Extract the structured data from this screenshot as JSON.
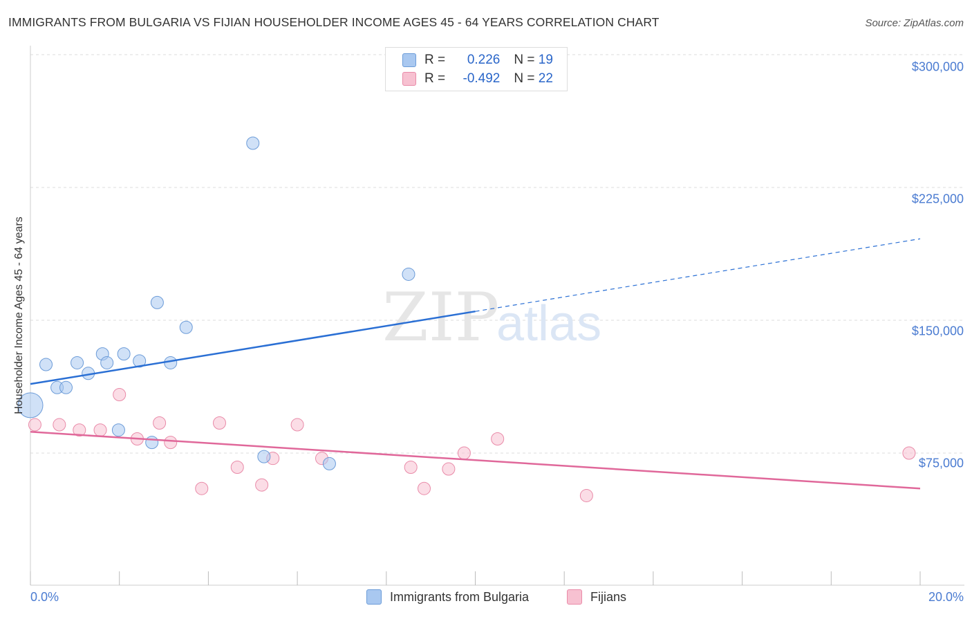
{
  "header": {
    "title": "IMMIGRANTS FROM BULGARIA VS FIJIAN HOUSEHOLDER INCOME AGES 45 - 64 YEARS CORRELATION CHART",
    "source": "Source: ZipAtlas.com"
  },
  "watermark": {
    "zip": "ZIP",
    "atlas": "atlas"
  },
  "legend": {
    "rows": [
      {
        "r_label": "R = ",
        "r_value": "0.226",
        "n_label": "N = ",
        "n_value": "19",
        "color": "#a9c8f0",
        "border": "#6b9bd8"
      },
      {
        "r_label": "R = ",
        "r_value": "-0.492",
        "n_label": "N = ",
        "n_value": "22",
        "color": "#f7c1d1",
        "border": "#e98aa8"
      }
    ]
  },
  "colors": {
    "blue_fill": "#a9c8f0",
    "blue_stroke": "#6b9bd8",
    "blue_line": "#2a6fd4",
    "pink_fill": "#f7c1d1",
    "pink_stroke": "#e98aa8",
    "pink_line": "#e0689a",
    "tick_text": "#4a7bd1",
    "grid": "#dddddd"
  },
  "chart_data": {
    "type": "scatter",
    "title": "IMMIGRANTS FROM BULGARIA VS FIJIAN HOUSEHOLDER INCOME AGES 45 - 64 YEARS CORRELATION CHART",
    "xlabel": "",
    "ylabel": "Householder Income Ages 45 - 64 years",
    "xlim": [
      0,
      20
    ],
    "ylim": [
      0,
      310000
    ],
    "x_tick_labels": [
      "0.0%",
      "20.0%"
    ],
    "y_ticks": [
      75000,
      150000,
      225000,
      300000
    ],
    "y_tick_labels": [
      "$75,000",
      "$150,000",
      "$225,000",
      "$300,000"
    ],
    "grid": true,
    "series": [
      {
        "name": "Immigrants from Bulgaria",
        "color": "#a9c8f0",
        "points": [
          {
            "x": 0.0,
            "y": 102000,
            "big": true
          },
          {
            "x": 0.35,
            "y": 125000
          },
          {
            "x": 0.6,
            "y": 112000
          },
          {
            "x": 0.8,
            "y": 112000
          },
          {
            "x": 1.05,
            "y": 126000
          },
          {
            "x": 1.3,
            "y": 120000
          },
          {
            "x": 1.62,
            "y": 131000
          },
          {
            "x": 1.72,
            "y": 126000
          },
          {
            "x": 2.1,
            "y": 131000
          },
          {
            "x": 2.45,
            "y": 127000
          },
          {
            "x": 1.98,
            "y": 88000
          },
          {
            "x": 2.73,
            "y": 81000
          },
          {
            "x": 2.85,
            "y": 160000
          },
          {
            "x": 3.15,
            "y": 126000
          },
          {
            "x": 3.5,
            "y": 146000
          },
          {
            "x": 5.0,
            "y": 250000
          },
          {
            "x": 5.25,
            "y": 73000
          },
          {
            "x": 6.72,
            "y": 69000
          },
          {
            "x": 8.5,
            "y": 176000
          }
        ],
        "trend": {
          "x0": 0.0,
          "y0": 114000,
          "x1": 10.0,
          "y1": 155000,
          "dash_to_x": 20.0,
          "dash_to_y": 196000
        }
      },
      {
        "name": "Fijians",
        "color": "#f7c1d1",
        "points": [
          {
            "x": 0.1,
            "y": 91000
          },
          {
            "x": 0.65,
            "y": 91000
          },
          {
            "x": 1.1,
            "y": 88000
          },
          {
            "x": 1.57,
            "y": 88000
          },
          {
            "x": 2.0,
            "y": 108000
          },
          {
            "x": 2.4,
            "y": 83000
          },
          {
            "x": 2.9,
            "y": 92000
          },
          {
            "x": 3.15,
            "y": 81000
          },
          {
            "x": 3.85,
            "y": 55000
          },
          {
            "x": 4.25,
            "y": 92000
          },
          {
            "x": 4.65,
            "y": 67000
          },
          {
            "x": 5.2,
            "y": 57000
          },
          {
            "x": 5.45,
            "y": 72000
          },
          {
            "x": 6.0,
            "y": 91000
          },
          {
            "x": 6.55,
            "y": 72000
          },
          {
            "x": 8.55,
            "y": 67000
          },
          {
            "x": 8.85,
            "y": 55000
          },
          {
            "x": 9.4,
            "y": 66000
          },
          {
            "x": 9.75,
            "y": 75000
          },
          {
            "x": 10.5,
            "y": 83000
          },
          {
            "x": 12.5,
            "y": 51000
          },
          {
            "x": 19.75,
            "y": 75000
          }
        ],
        "trend": {
          "x0": 0.0,
          "y0": 87000,
          "x1": 20.0,
          "y1": 55000
        }
      }
    ],
    "legend_position": "bottom"
  },
  "bottom_legend": [
    {
      "label": "Immigrants from Bulgaria",
      "color": "#a9c8f0",
      "border": "#6b9bd8"
    },
    {
      "label": "Fijians",
      "color": "#f7c1d1",
      "border": "#e98aa8"
    }
  ]
}
